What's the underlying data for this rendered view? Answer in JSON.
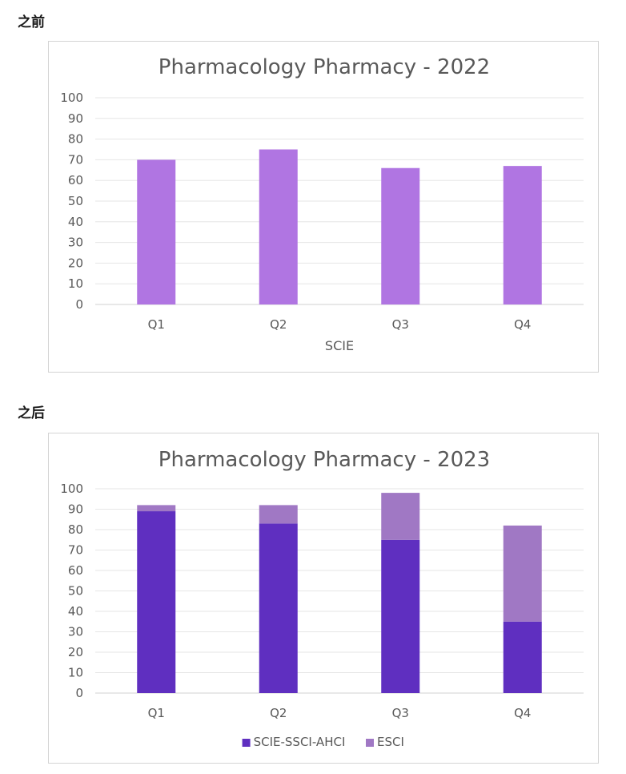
{
  "sections": {
    "before_label": "之前",
    "after_label": "之后"
  },
  "chart_data": [
    {
      "type": "bar",
      "title": "Pharmacology Pharmacy - 2022",
      "categories": [
        "Q1",
        "Q2",
        "Q3",
        "Q4"
      ],
      "xlabel": "SCIE",
      "ylabel": "",
      "ylim": [
        0,
        100
      ],
      "yticks": [
        0,
        10,
        20,
        30,
        40,
        50,
        60,
        70,
        80,
        90,
        100
      ],
      "grid": true,
      "legend": "none",
      "series": [
        {
          "values": [
            70,
            75,
            66,
            67
          ],
          "color": "#b075e2"
        }
      ]
    },
    {
      "type": "bar",
      "stacked": true,
      "title": "Pharmacology Pharmacy - 2023",
      "categories": [
        "Q1",
        "Q2",
        "Q3",
        "Q4"
      ],
      "xlabel": "",
      "ylabel": "",
      "ylim": [
        0,
        100
      ],
      "yticks": [
        0,
        10,
        20,
        30,
        40,
        50,
        60,
        70,
        80,
        90,
        100
      ],
      "grid": true,
      "legend": "bottom",
      "series": [
        {
          "name": "SCIE-SSCI-AHCI",
          "values": [
            89,
            83,
            75,
            35
          ],
          "color": "#5f2fc0"
        },
        {
          "name": "ESCI",
          "values": [
            3,
            9,
            23,
            47
          ],
          "color": "#a078c4"
        }
      ]
    }
  ]
}
